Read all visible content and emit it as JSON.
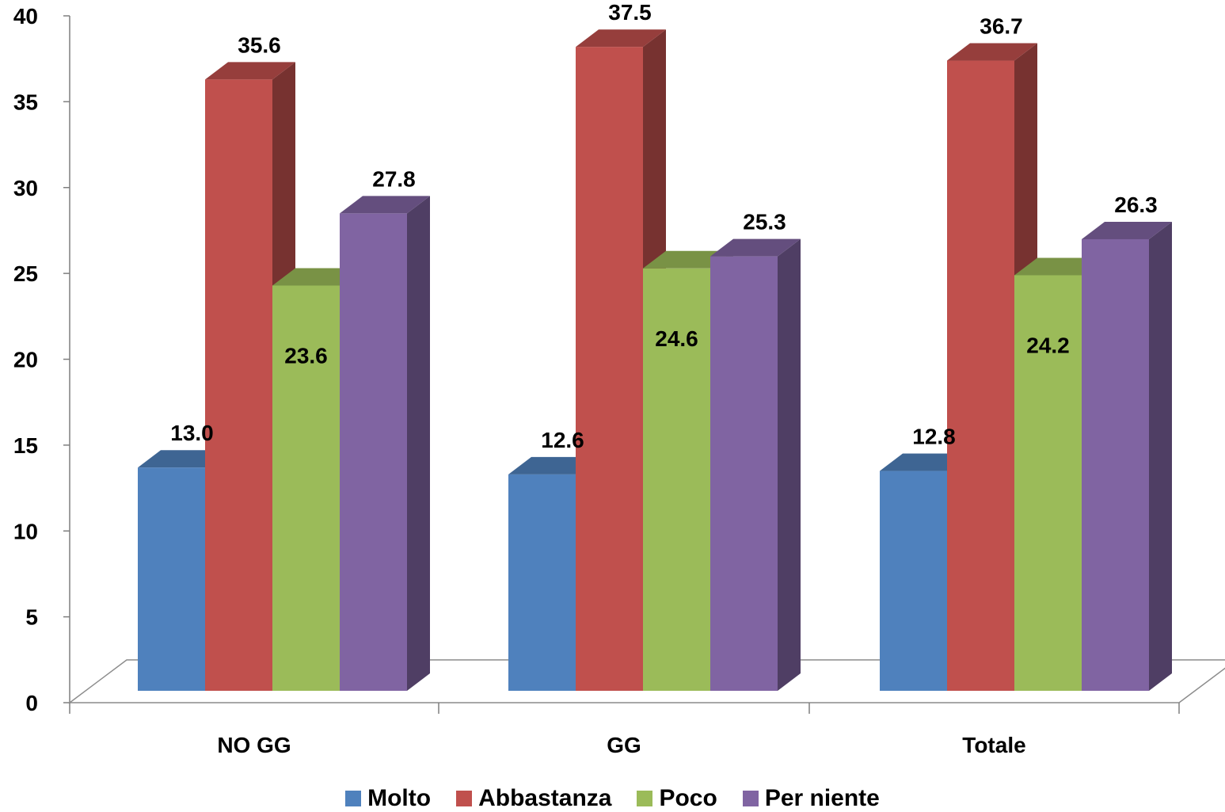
{
  "chart_data": {
    "type": "bar",
    "title": "",
    "xlabel": "",
    "ylabel": "",
    "ylim": [
      0,
      40
    ],
    "yticks": [
      0,
      5,
      10,
      15,
      20,
      25,
      30,
      35,
      40
    ],
    "three_d": true,
    "legend_position": "bottom",
    "categories": [
      "NO GG",
      "GG",
      "Totale"
    ],
    "series": [
      {
        "name": "Molto",
        "color": "#4F81BD",
        "values": [
          13.0,
          12.6,
          12.8
        ],
        "labels": [
          "13.0",
          "12.6",
          "12.8"
        ]
      },
      {
        "name": "Abbastanza",
        "color": "#C0504D",
        "values": [
          35.6,
          37.5,
          36.7
        ],
        "labels": [
          "35.6",
          "37.5",
          "36.7"
        ]
      },
      {
        "name": "Poco",
        "color": "#9BBB59",
        "values": [
          23.6,
          24.6,
          24.2
        ],
        "labels": [
          "23.6",
          "24.6",
          "24.2"
        ]
      },
      {
        "name": "Per niente",
        "color": "#8064A2",
        "values": [
          27.8,
          25.3,
          26.3
        ],
        "labels": [
          "27.8",
          "25.3",
          "26.3"
        ]
      }
    ]
  }
}
